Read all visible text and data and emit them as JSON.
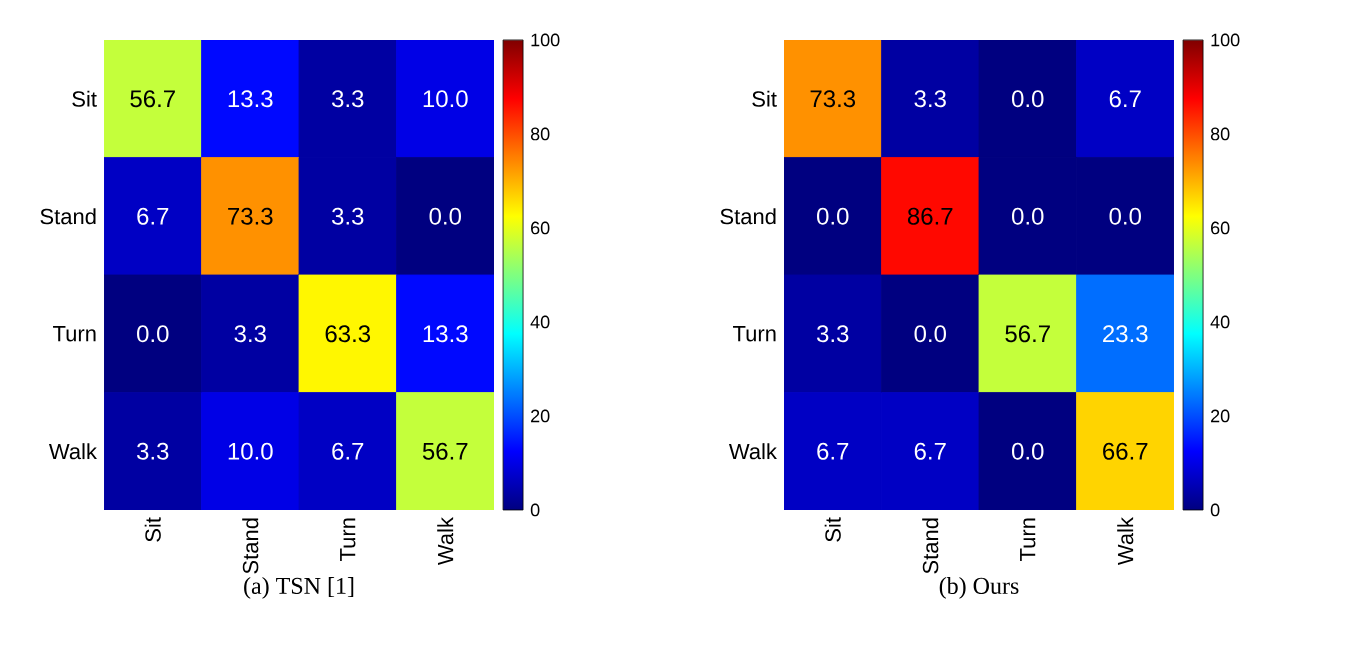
{
  "chart_data": [
    {
      "type": "heatmap",
      "title": "(a) TSN [1]",
      "categories": [
        "Sit",
        "Stand",
        "Turn",
        "Walk"
      ],
      "y_categories": [
        "Sit",
        "Stand",
        "Turn",
        "Walk"
      ],
      "cells": [
        [
          56.7,
          13.3,
          3.3,
          10.0
        ],
        [
          6.7,
          73.3,
          3.3,
          0.0
        ],
        [
          0.0,
          3.3,
          63.3,
          13.3
        ],
        [
          3.3,
          10.0,
          6.7,
          56.7
        ]
      ],
      "cell_labels": [
        [
          "56.7",
          "13.3",
          "3.3",
          "10.0"
        ],
        [
          "6.7",
          "73.3",
          "3.3",
          "0.0"
        ],
        [
          "0.0",
          "3.3",
          "63.3",
          "13.3"
        ],
        [
          "3.3",
          "10.0",
          "6.7",
          "56.7"
        ]
      ],
      "clim": [
        0,
        100
      ],
      "cticks": [
        0,
        20,
        40,
        60,
        80,
        100
      ]
    },
    {
      "type": "heatmap",
      "title": "(b) Ours",
      "categories": [
        "Sit",
        "Stand",
        "Turn",
        "Walk"
      ],
      "y_categories": [
        "Sit",
        "Stand",
        "Turn",
        "Walk"
      ],
      "cells": [
        [
          73.3,
          3.3,
          0.0,
          6.7
        ],
        [
          0.0,
          86.7,
          0.0,
          0.0
        ],
        [
          3.3,
          0.0,
          56.7,
          23.3
        ],
        [
          6.7,
          6.7,
          0.0,
          66.7
        ]
      ],
      "cell_labels": [
        [
          "73.3",
          "3.3",
          "0.0",
          "6.7"
        ],
        [
          "0.0",
          "86.7",
          "0.0",
          "0.0"
        ],
        [
          "3.3",
          "0.0",
          "56.7",
          "23.3"
        ],
        [
          "6.7",
          "6.7",
          "0.0",
          "66.7"
        ]
      ],
      "clim": [
        0,
        100
      ],
      "cticks": [
        0,
        20,
        40,
        60,
        80,
        100
      ]
    }
  ]
}
